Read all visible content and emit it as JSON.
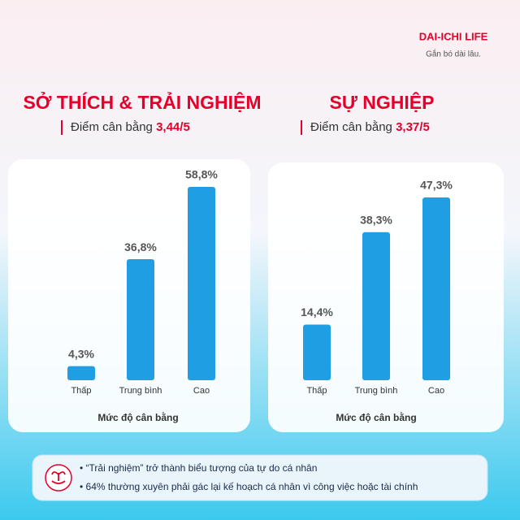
{
  "brand": {
    "logo": "DAI-ICHI LIFE",
    "tagline": "Gắn bó dài lâu."
  },
  "chart_data": [
    {
      "type": "bar",
      "title": "SỞ THÍCH & TRẢI NGHIỆM",
      "subtitle": "Điểm cân bằng",
      "score": "3,44/5",
      "categories": [
        "Thấp",
        "Trung bình",
        "Cao"
      ],
      "values": [
        4.3,
        36.8,
        58.8
      ],
      "value_labels": [
        "4,3%",
        "36,8%",
        "58,8%"
      ],
      "color": "#1f9ee3",
      "xlabel": "Mức độ cân bằng"
    },
    {
      "type": "bar",
      "title": "SỰ NGHIỆP",
      "subtitle": "Điểm cân bằng",
      "score": "3,37/5",
      "categories": [
        "Thấp",
        "Trung bình",
        "Cao"
      ],
      "values": [
        14.4,
        38.3,
        47.3
      ],
      "value_labels": [
        "14,4%",
        "38,3%",
        "47,3%"
      ],
      "color": "#1f9ee3",
      "xlabel": "Mức độ cân bằng"
    }
  ],
  "notes": [
    "“Trải nghiệm” trở thành biểu tượng của tự do cá nhân",
    "64% thường xuyên phải gác lại kế hoạch cá nhân vì công việc hoặc tài chính"
  ]
}
